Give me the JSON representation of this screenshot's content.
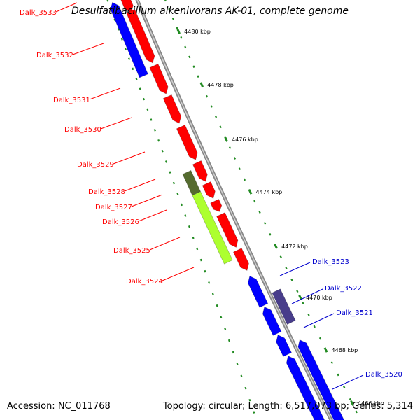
{
  "title": "Desulfatibacillum alkenivorans AK-01, complete genome",
  "footer": {
    "accession": "Accession: NC_011768",
    "topology": "Topology: circular; Length: 6,517,073 bp; Genes: 5,314"
  },
  "colors": {
    "forward": "#ff0000",
    "reverse": "#0000ff",
    "rna_dark": "#556b2f",
    "rna_light": "#adff2f",
    "reverse_special": "#483d8b",
    "backbone": "#888888",
    "tick": "#228b22"
  },
  "kbp_labels": [
    "4480 kbp",
    "4478 kbp",
    "4476 kbp",
    "4474 kbp",
    "4472 kbp",
    "4470 kbp",
    "4468 kbp",
    "4466 kbp"
  ],
  "genes_left": [
    "Dalk_3533",
    "Dalk_3532",
    "Dalk_3531",
    "Dalk_3530",
    "Dalk_3529",
    "Dalk_3528",
    "Dalk_3527",
    "Dalk_3526",
    "Dalk_3525",
    "Dalk_3524"
  ],
  "genes_right": [
    "Dalk_3523",
    "Dalk_3522",
    "Dalk_3521",
    "Dalk_3520"
  ]
}
